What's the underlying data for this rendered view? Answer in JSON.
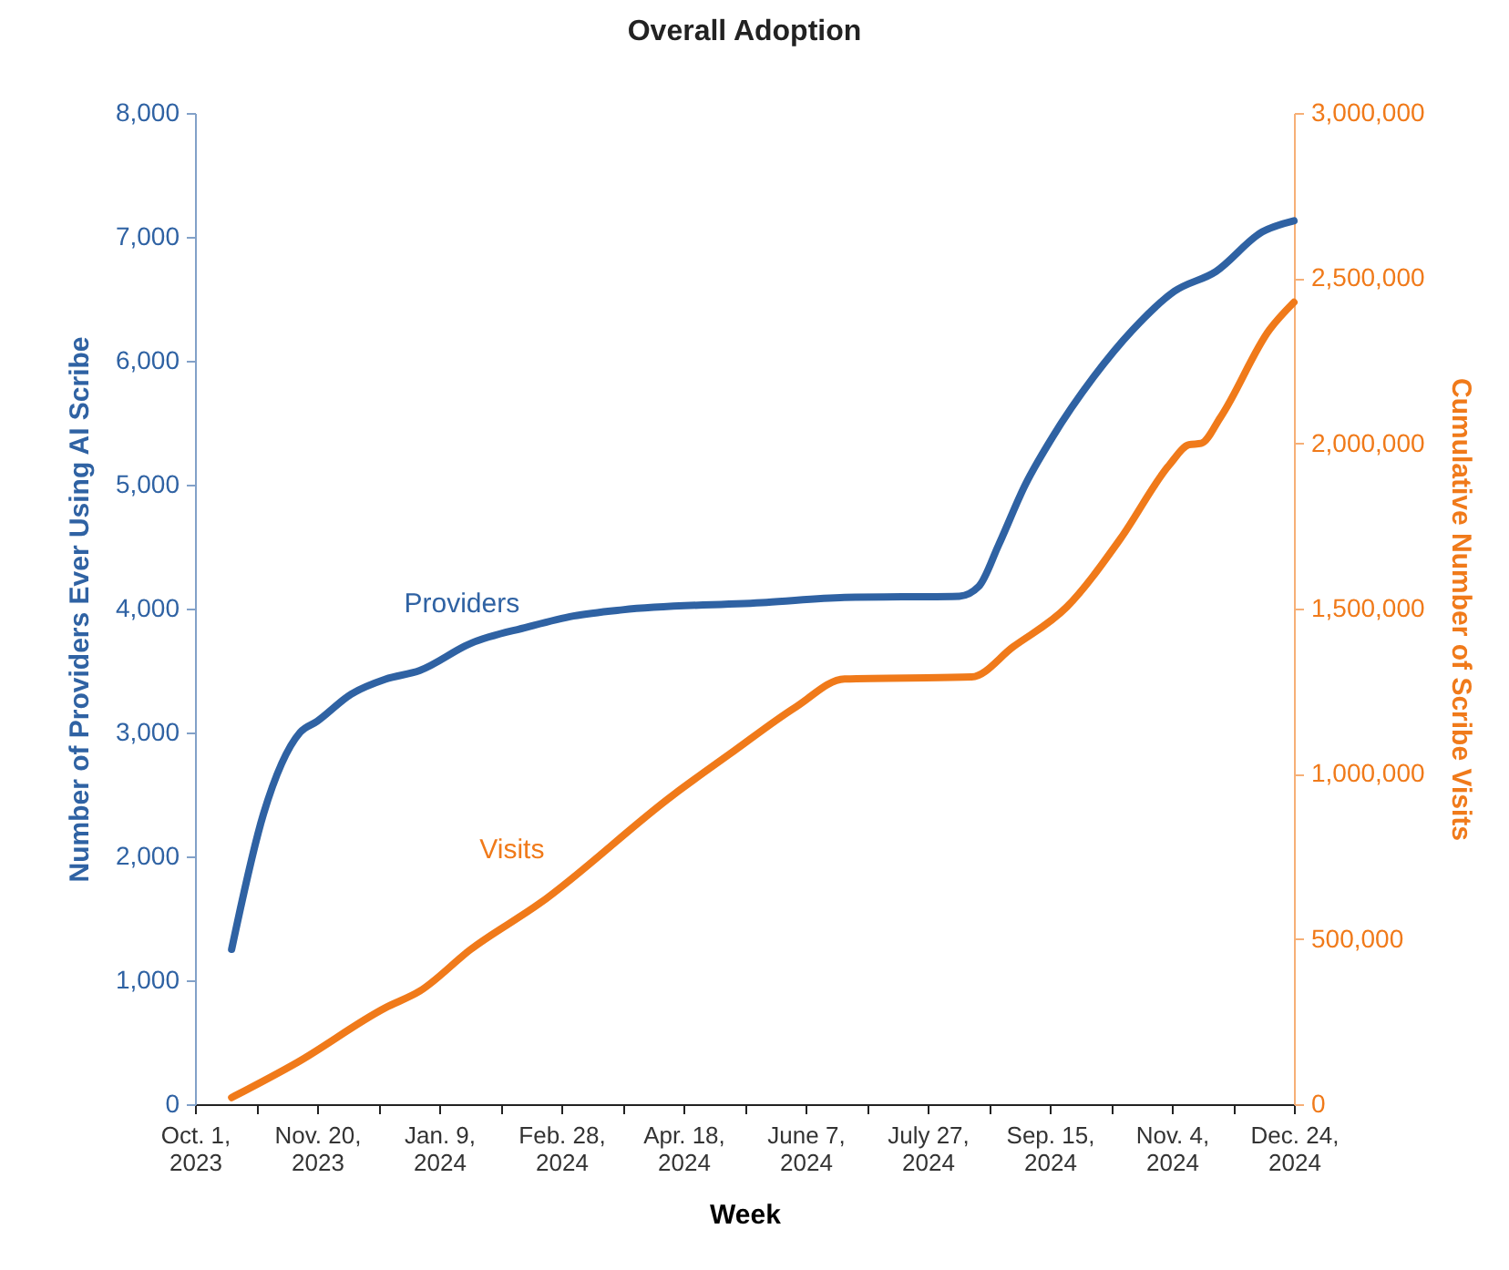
{
  "chart_data": {
    "type": "line",
    "title": "Overall Adoption",
    "xlabel": "Week",
    "ylabel": "Number of Providers Ever Using AI Scribe",
    "y2label": "Cumulative Number of Scribe Visits",
    "xlim": [
      "2023-10-01",
      "2024-12-24"
    ],
    "xticks": [
      {
        "value": "2023-10-01",
        "label": "Oct. 1, 2023"
      },
      {
        "value": "2023-10-26",
        "label": null
      },
      {
        "value": "2023-11-20",
        "label": "Nov. 20, 2023"
      },
      {
        "value": "2023-12-15",
        "label": null
      },
      {
        "value": "2024-01-09",
        "label": "Jan. 9, 2024"
      },
      {
        "value": "2024-02-03",
        "label": null
      },
      {
        "value": "2024-02-28",
        "label": "Feb. 28, 2024"
      },
      {
        "value": "2024-03-24",
        "label": null
      },
      {
        "value": "2024-04-18",
        "label": "Apr. 18, 2024"
      },
      {
        "value": "2024-05-13",
        "label": null
      },
      {
        "value": "2024-06-07",
        "label": "June 7, 2024"
      },
      {
        "value": "2024-07-02",
        "label": null
      },
      {
        "value": "2024-07-27",
        "label": "July 27, 2024"
      },
      {
        "value": "2024-08-21",
        "label": null
      },
      {
        "value": "2024-09-15",
        "label": "Sep. 15, 2024"
      },
      {
        "value": "2024-10-10",
        "label": null
      },
      {
        "value": "2024-11-04",
        "label": "Nov. 4, 2024"
      },
      {
        "value": "2024-11-29",
        "label": null
      },
      {
        "value": "2024-12-24",
        "label": "Dec. 24, 2024"
      }
    ],
    "ylim": [
      0,
      8000
    ],
    "yticks": [
      0,
      {
        "value": 1000,
        "label": "1,000"
      },
      {
        "value": 2000,
        "label": "2,000"
      },
      {
        "value": 3000,
        "label": "3,000"
      },
      {
        "value": 4000,
        "label": "4,000"
      },
      {
        "value": 5000,
        "label": "5,000"
      },
      {
        "value": 6000,
        "label": "6,000"
      },
      {
        "value": 7000,
        "label": "7,000"
      },
      {
        "value": 8000,
        "label": "8,000"
      }
    ],
    "y2lim": [
      0,
      3000000
    ],
    "y2ticks": [
      0,
      {
        "value": 500000,
        "label": "500,000"
      },
      {
        "value": 1000000,
        "label": "1,000,000"
      },
      {
        "value": 1500000,
        "label": "1,500,000"
      },
      {
        "value": 2000000,
        "label": "2,000,000"
      },
      {
        "value": 2500000,
        "label": "2,500,000"
      },
      {
        "value": 3000000,
        "label": "3,000,000"
      }
    ],
    "series": [
      {
        "name": "Providers",
        "color": "#2f62a3",
        "x": [
          "2023-10-16",
          "2023-10-29",
          "2023-11-13",
          "2023-11-20",
          "2023-12-04",
          "2023-12-18",
          "2024-01-01",
          "2024-01-22",
          "2024-02-14",
          "2024-03-04",
          "2024-03-24",
          "2024-05-22",
          "2024-06-23",
          "2024-08-09",
          "2024-08-17",
          "2024-08-25",
          "2024-09-05",
          "2024-09-16",
          "2024-10-03",
          "2024-10-19",
          "2024-11-05",
          "2024-11-22",
          "2024-12-11",
          "2024-12-24"
        ],
        "values": [
          1250,
          2340,
          3000,
          3090,
          3310,
          3430,
          3500,
          3720,
          3850,
          3940,
          3990,
          4050,
          4090,
          4100,
          4180,
          4510,
          5000,
          5380,
          5870,
          6250,
          6560,
          6720,
          7040,
          7130
        ]
      },
      {
        "name": "Visits",
        "color": "#f07a1a",
        "axis": "y2",
        "x": [
          "2023-10-16",
          "2023-11-12",
          "2023-12-18",
          "2024-01-01",
          "2024-01-22",
          "2024-02-19",
          "2024-04-14",
          "2024-05-07",
          "2024-06-03",
          "2024-06-23",
          "2024-08-14",
          "2024-08-31",
          "2024-09-22",
          "2024-10-14",
          "2024-11-03",
          "2024-11-11",
          "2024-11-16",
          "2024-11-24",
          "2024-12-14",
          "2024-12-24"
        ],
        "values": [
          20000,
          127000,
          292000,
          342000,
          469000,
          607000,
          937000,
          1060000,
          1202000,
          1287000,
          1293000,
          1384000,
          1505000,
          1712000,
          1935000,
          1996000,
          2000000,
          2080000,
          2344000,
          2427000
        ]
      }
    ]
  }
}
